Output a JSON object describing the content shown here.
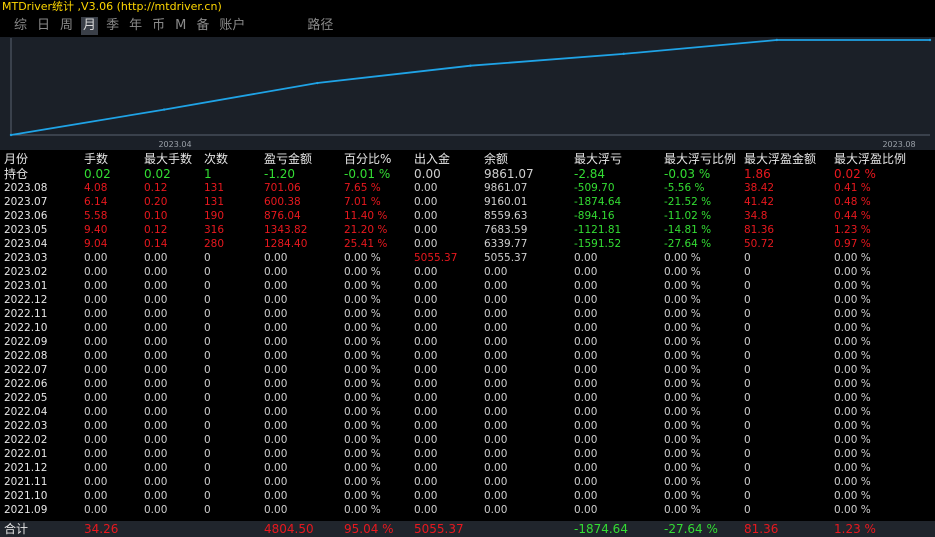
{
  "title": "MTDriver统计 ,V3.06 (http://mtdriver.cn)",
  "tabs": [
    {
      "label": "综",
      "active": false
    },
    {
      "label": "日",
      "active": false
    },
    {
      "label": "周",
      "active": false
    },
    {
      "label": "月",
      "active": true
    },
    {
      "label": "季",
      "active": false
    },
    {
      "label": "年",
      "active": false
    },
    {
      "label": "币",
      "active": false
    },
    {
      "label": "M",
      "active": false
    },
    {
      "label": "备",
      "active": false
    },
    {
      "label": "账户",
      "active": false
    },
    {
      "label": "路径",
      "active": false
    }
  ],
  "colors": {
    "positive": "#33dd33",
    "negative": "#e8181e",
    "line": "#1fa3e6",
    "background": "#1b2028"
  },
  "chart_data": {
    "type": "line",
    "x_tick_labels": [
      "2023.04",
      "2023.08"
    ],
    "x": [
      "2023.03",
      "2023.04",
      "2023.05",
      "2023.06",
      "2023.07",
      "2023.08",
      "持仓"
    ],
    "values": [
      5055.37,
      6339.77,
      7683.59,
      8559.63,
      9160.01,
      9861.07,
      9861.07
    ],
    "ylim": [
      5055.37,
      9861.07
    ],
    "grid": false,
    "legend": "none"
  },
  "table": {
    "headers": [
      "月份",
      "手数",
      "最大手数",
      "次数",
      "盈亏金额",
      "百分比%",
      "出入金",
      "余额",
      "最大浮亏",
      "最大浮亏比例",
      "最大浮盈金额",
      "最大浮盈比例"
    ],
    "hold": [
      "持仓",
      "0.02",
      "0.02",
      "1",
      "-1.20",
      "-0.01 %",
      "0.00",
      "9861.07",
      "-2.84",
      "-0.03 %",
      "1.86",
      "0.02 %"
    ],
    "rows": [
      [
        "2023.08",
        "4.08",
        "0.12",
        "131",
        "701.06",
        "7.65 %",
        "0.00",
        "9861.07",
        "-509.70",
        "-5.56 %",
        "38.42",
        "0.41 %"
      ],
      [
        "2023.07",
        "6.14",
        "0.20",
        "131",
        "600.38",
        "7.01 %",
        "0.00",
        "9160.01",
        "-1874.64",
        "-21.52 %",
        "41.42",
        "0.48 %"
      ],
      [
        "2023.06",
        "5.58",
        "0.10",
        "190",
        "876.04",
        "11.40 %",
        "0.00",
        "8559.63",
        "-894.16",
        "-11.02 %",
        "34.8",
        "0.44 %"
      ],
      [
        "2023.05",
        "9.40",
        "0.12",
        "316",
        "1343.82",
        "21.20 %",
        "0.00",
        "7683.59",
        "-1121.81",
        "-14.81 %",
        "81.36",
        "1.23 %"
      ],
      [
        "2023.04",
        "9.04",
        "0.14",
        "280",
        "1284.40",
        "25.41 %",
        "0.00",
        "6339.77",
        "-1591.52",
        "-27.64 %",
        "50.72",
        "0.97 %"
      ],
      [
        "2023.03",
        "0.00",
        "0.00",
        "0",
        "0.00",
        "0.00 %",
        "5055.37",
        "5055.37",
        "0.00",
        "0.00 %",
        "0",
        "0.00 %"
      ],
      [
        "2023.02",
        "0.00",
        "0.00",
        "0",
        "0.00",
        "0.00 %",
        "0.00",
        "0.00",
        "0.00",
        "0.00 %",
        "0",
        "0.00 %"
      ],
      [
        "2023.01",
        "0.00",
        "0.00",
        "0",
        "0.00",
        "0.00 %",
        "0.00",
        "0.00",
        "0.00",
        "0.00 %",
        "0",
        "0.00 %"
      ],
      [
        "2022.12",
        "0.00",
        "0.00",
        "0",
        "0.00",
        "0.00 %",
        "0.00",
        "0.00",
        "0.00",
        "0.00 %",
        "0",
        "0.00 %"
      ],
      [
        "2022.11",
        "0.00",
        "0.00",
        "0",
        "0.00",
        "0.00 %",
        "0.00",
        "0.00",
        "0.00",
        "0.00 %",
        "0",
        "0.00 %"
      ],
      [
        "2022.10",
        "0.00",
        "0.00",
        "0",
        "0.00",
        "0.00 %",
        "0.00",
        "0.00",
        "0.00",
        "0.00 %",
        "0",
        "0.00 %"
      ],
      [
        "2022.09",
        "0.00",
        "0.00",
        "0",
        "0.00",
        "0.00 %",
        "0.00",
        "0.00",
        "0.00",
        "0.00 %",
        "0",
        "0.00 %"
      ],
      [
        "2022.08",
        "0.00",
        "0.00",
        "0",
        "0.00",
        "0.00 %",
        "0.00",
        "0.00",
        "0.00",
        "0.00 %",
        "0",
        "0.00 %"
      ],
      [
        "2022.07",
        "0.00",
        "0.00",
        "0",
        "0.00",
        "0.00 %",
        "0.00",
        "0.00",
        "0.00",
        "0.00 %",
        "0",
        "0.00 %"
      ],
      [
        "2022.06",
        "0.00",
        "0.00",
        "0",
        "0.00",
        "0.00 %",
        "0.00",
        "0.00",
        "0.00",
        "0.00 %",
        "0",
        "0.00 %"
      ],
      [
        "2022.05",
        "0.00",
        "0.00",
        "0",
        "0.00",
        "0.00 %",
        "0.00",
        "0.00",
        "0.00",
        "0.00 %",
        "0",
        "0.00 %"
      ],
      [
        "2022.04",
        "0.00",
        "0.00",
        "0",
        "0.00",
        "0.00 %",
        "0.00",
        "0.00",
        "0.00",
        "0.00 %",
        "0",
        "0.00 %"
      ],
      [
        "2022.03",
        "0.00",
        "0.00",
        "0",
        "0.00",
        "0.00 %",
        "0.00",
        "0.00",
        "0.00",
        "0.00 %",
        "0",
        "0.00 %"
      ],
      [
        "2022.02",
        "0.00",
        "0.00",
        "0",
        "0.00",
        "0.00 %",
        "0.00",
        "0.00",
        "0.00",
        "0.00 %",
        "0",
        "0.00 %"
      ],
      [
        "2022.01",
        "0.00",
        "0.00",
        "0",
        "0.00",
        "0.00 %",
        "0.00",
        "0.00",
        "0.00",
        "0.00 %",
        "0",
        "0.00 %"
      ],
      [
        "2021.12",
        "0.00",
        "0.00",
        "0",
        "0.00",
        "0.00 %",
        "0.00",
        "0.00",
        "0.00",
        "0.00 %",
        "0",
        "0.00 %"
      ],
      [
        "2021.11",
        "0.00",
        "0.00",
        "0",
        "0.00",
        "0.00 %",
        "0.00",
        "0.00",
        "0.00",
        "0.00 %",
        "0",
        "0.00 %"
      ],
      [
        "2021.10",
        "0.00",
        "0.00",
        "0",
        "0.00",
        "0.00 %",
        "0.00",
        "0.00",
        "0.00",
        "0.00 %",
        "0",
        "0.00 %"
      ],
      [
        "2021.09",
        "0.00",
        "0.00",
        "0",
        "0.00",
        "0.00 %",
        "0.00",
        "0.00",
        "0.00",
        "0.00 %",
        "0",
        "0.00 %"
      ]
    ],
    "total": [
      "合计",
      "34.26",
      "",
      "",
      "4804.50",
      "95.04 %",
      "5055.37",
      "",
      "-1874.64",
      "-27.64 %",
      "81.36",
      "1.23 %"
    ]
  }
}
